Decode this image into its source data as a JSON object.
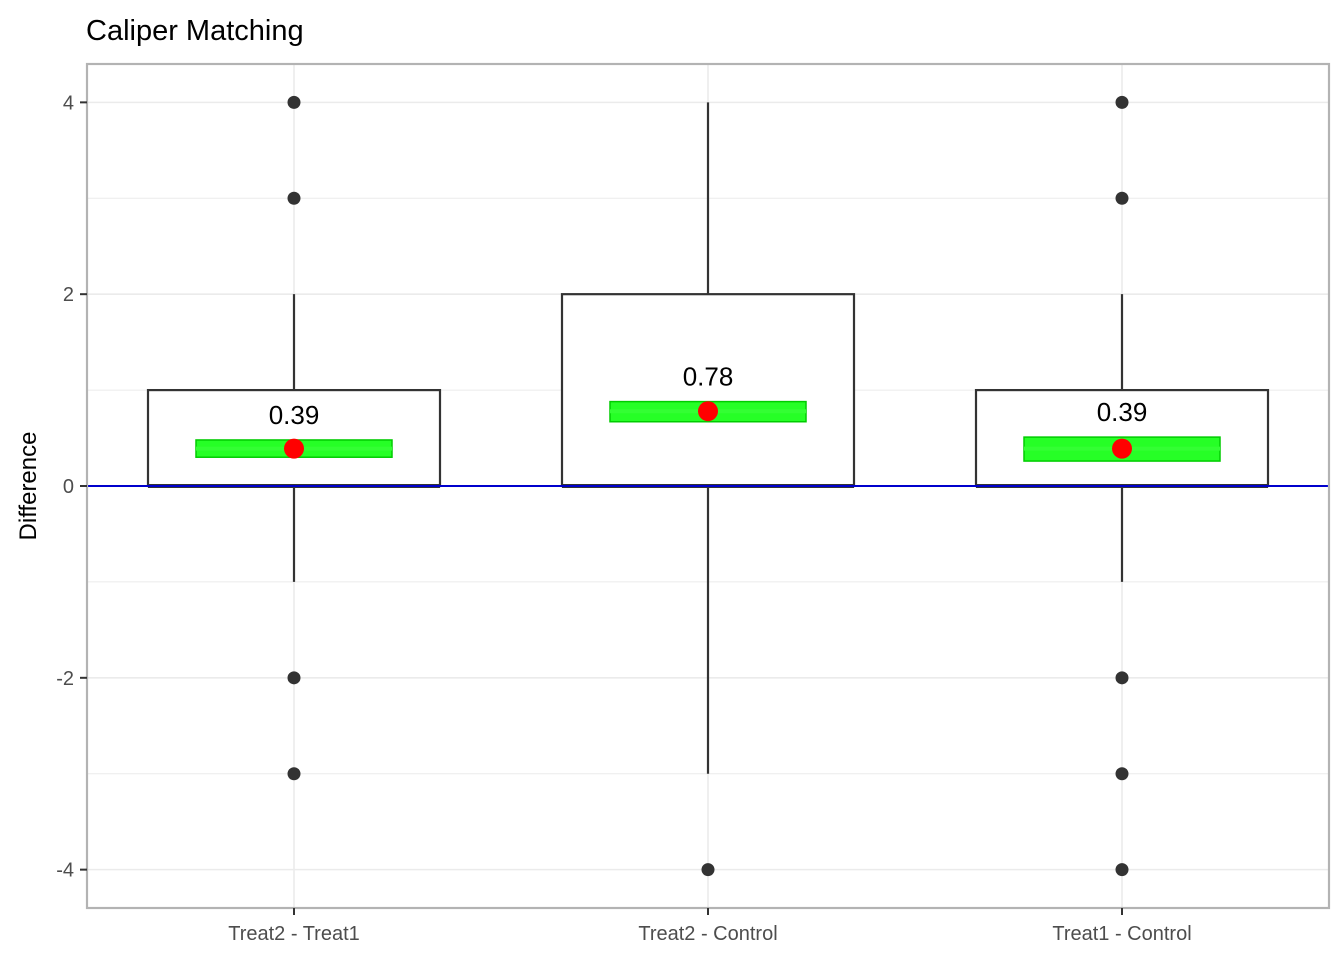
{
  "chart_data": {
    "type": "boxplot",
    "title": "Caliper Matching",
    "xlabel": "",
    "ylabel": "Difference",
    "ylim": [
      -4.4,
      4.4
    ],
    "yticks": [
      -4,
      -2,
      0,
      2,
      4
    ],
    "ytick_labels": [
      "-4",
      "-2",
      "0",
      "2",
      "4"
    ],
    "grid": true,
    "legend": "none",
    "reference_line": {
      "y": 0,
      "color": "#0000cc"
    },
    "categories": [
      "Treat2 - Treat1",
      "Treat2 - Control",
      "Treat1 - Control"
    ],
    "boxes": [
      {
        "category": "Treat2 - Treat1",
        "q1": 0,
        "median": 0,
        "q3": 1,
        "whisker_low": -1,
        "whisker_high": 2,
        "outliers": [
          4,
          3,
          -2,
          -3
        ],
        "mean": 0.39,
        "mean_label": "0.39",
        "ci": [
          0.3,
          0.48
        ]
      },
      {
        "category": "Treat2 - Control",
        "q1": 0,
        "median": 0,
        "q3": 2,
        "whisker_low": -3,
        "whisker_high": 4,
        "outliers": [
          -4
        ],
        "mean": 0.78,
        "mean_label": "0.78",
        "ci": [
          0.67,
          0.88
        ]
      },
      {
        "category": "Treat1 - Control",
        "q1": 0,
        "median": 0,
        "q3": 1,
        "whisker_low": -1,
        "whisker_high": 2,
        "outliers": [
          4,
          3,
          -2,
          -3,
          -4
        ],
        "mean": 0.39,
        "mean_label": "0.39",
        "ci": [
          0.26,
          0.51
        ]
      }
    ],
    "colors": {
      "box_stroke": "#333333",
      "outlier": "#333333",
      "mean_point": "#ff0000",
      "ci_fill": "#00ff00",
      "ci_stroke": "#00cc00",
      "panel_border": "#b3b3b3",
      "grid": "#ebebeb"
    }
  }
}
